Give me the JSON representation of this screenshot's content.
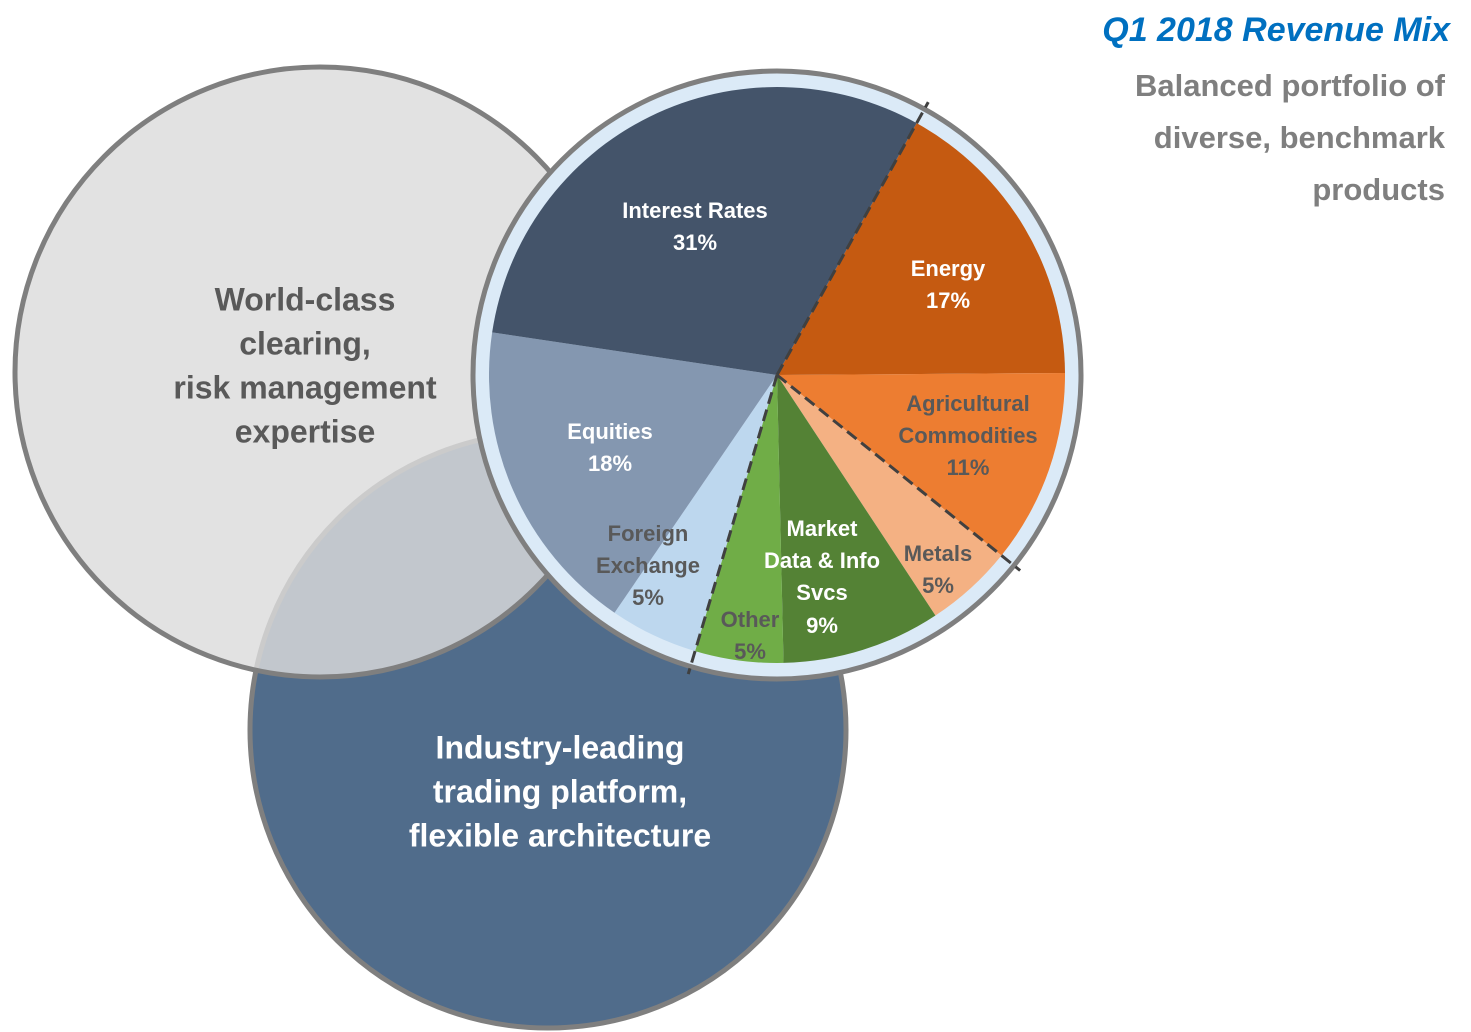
{
  "chart_data": {
    "type": "pie",
    "title": "Q1 2018 Revenue Mix",
    "subtitle": [
      "Balanced portfolio of",
      "diverse, benchmark",
      "products"
    ],
    "categories": [
      [
        "Energy"
      ],
      [
        "Agricultural",
        "Commodities"
      ],
      [
        "Metals"
      ],
      [
        "Market",
        "Data & Info",
        "Svcs"
      ],
      [
        "Other"
      ],
      [
        "Foreign",
        "Exchange"
      ],
      [
        "Equities"
      ],
      [
        "Interest Rates"
      ]
    ],
    "values": [
      17,
      11,
      5,
      9,
      5,
      5,
      18,
      31
    ],
    "value_labels": [
      "17%",
      "11%",
      "5%",
      "9%",
      "5%",
      "5%",
      "18%",
      "31%"
    ],
    "colors": [
      "#c55a11",
      "#ed7d31",
      "#f4b183",
      "#548235",
      "#70ad47",
      "#bdd7ee",
      "#8497b0",
      "#44546a"
    ],
    "venn_labels": [
      [
        "World-class",
        "clearing,",
        "risk management",
        "expertise"
      ],
      [
        "Industry-leading",
        "trading platform,",
        "flexible architecture"
      ]
    ]
  }
}
